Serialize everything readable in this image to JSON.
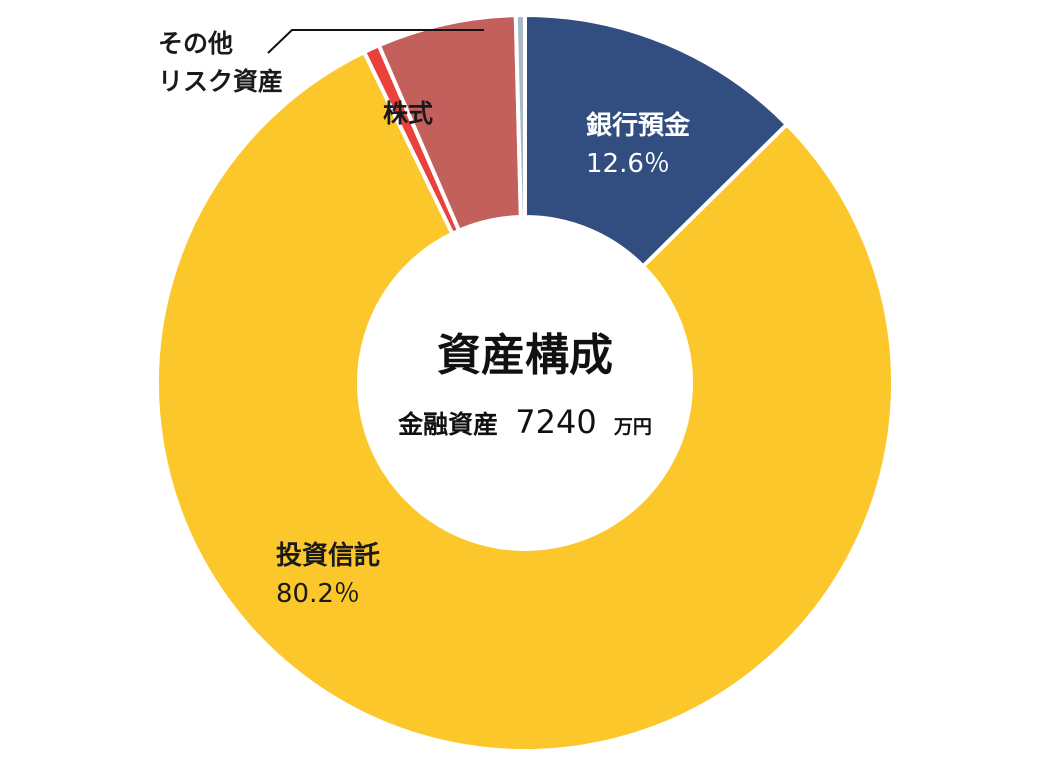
{
  "chart_data": {
    "type": "pie",
    "style": "donut",
    "title": "資産構成",
    "subtitle_label": "金融資産",
    "subtitle_value": "7240",
    "subtitle_unit": "万円",
    "slices": [
      {
        "name": "銀行預金",
        "value": 12.6,
        "value_label": "12.6％",
        "color": "#324d80"
      },
      {
        "name": "投資信託",
        "value": 80.2,
        "value_label": "80.2％",
        "color": "#fcc72a"
      },
      {
        "name": "その他リスク資産",
        "name_lines": [
          "その他",
          "リスク資産"
        ],
        "value": 0.7,
        "value_label": "",
        "color": "#e9423d"
      },
      {
        "name": "株式",
        "value": 6.1,
        "value_label": "",
        "color": "#c4605c"
      },
      {
        "name": "",
        "value": 0.4,
        "value_label": "",
        "color": "#a9b8c9"
      }
    ]
  }
}
